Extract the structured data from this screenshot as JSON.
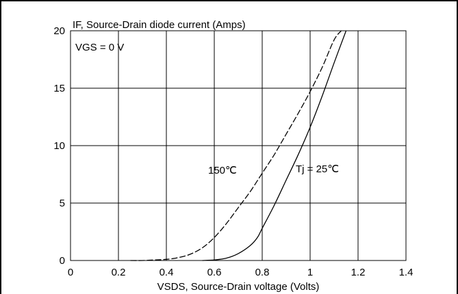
{
  "chart_data": {
    "type": "line",
    "ylabel": "IF, Source-Drain diode current (Amps)",
    "xlabel": "VSDS, Source-Drain voltage (Volts)",
    "xlim": [
      0,
      1.4
    ],
    "ylim": [
      0,
      20
    ],
    "xticks": [
      "0",
      "0.2",
      "0.4",
      "0.6",
      "0.8",
      "1",
      "1.2",
      "1.4"
    ],
    "yticks": [
      "0",
      "5",
      "10",
      "15",
      "20"
    ],
    "grid": true,
    "annotations": {
      "condition": "VGS = 0 V",
      "label_150": "150℃",
      "label_25": "Tj = 25℃"
    },
    "series": [
      {
        "name": "150℃",
        "style": "dashed",
        "points": [
          [
            0.25,
            0.0
          ],
          [
            0.3,
            0.0
          ],
          [
            0.35,
            0.05
          ],
          [
            0.4,
            0.1
          ],
          [
            0.45,
            0.25
          ],
          [
            0.5,
            0.55
          ],
          [
            0.55,
            1.1
          ],
          [
            0.6,
            2.0
          ],
          [
            0.65,
            3.2
          ],
          [
            0.7,
            4.6
          ],
          [
            0.75,
            6.0
          ],
          [
            0.8,
            7.6
          ],
          [
            0.85,
            9.2
          ],
          [
            0.9,
            11.0
          ],
          [
            0.95,
            12.8
          ],
          [
            1.0,
            14.7
          ],
          [
            1.05,
            16.8
          ],
          [
            1.1,
            19.2
          ],
          [
            1.13,
            20.0
          ]
        ]
      },
      {
        "name": "Tj = 25℃",
        "style": "solid",
        "points": [
          [
            0.55,
            0.0
          ],
          [
            0.6,
            0.05
          ],
          [
            0.65,
            0.2
          ],
          [
            0.7,
            0.6
          ],
          [
            0.75,
            1.3
          ],
          [
            0.78,
            2.0
          ],
          [
            0.8,
            2.8
          ],
          [
            0.85,
            4.8
          ],
          [
            0.9,
            7.0
          ],
          [
            0.95,
            9.2
          ],
          [
            1.0,
            11.6
          ],
          [
            1.05,
            14.3
          ],
          [
            1.1,
            17.2
          ],
          [
            1.15,
            20.0
          ]
        ]
      }
    ]
  }
}
